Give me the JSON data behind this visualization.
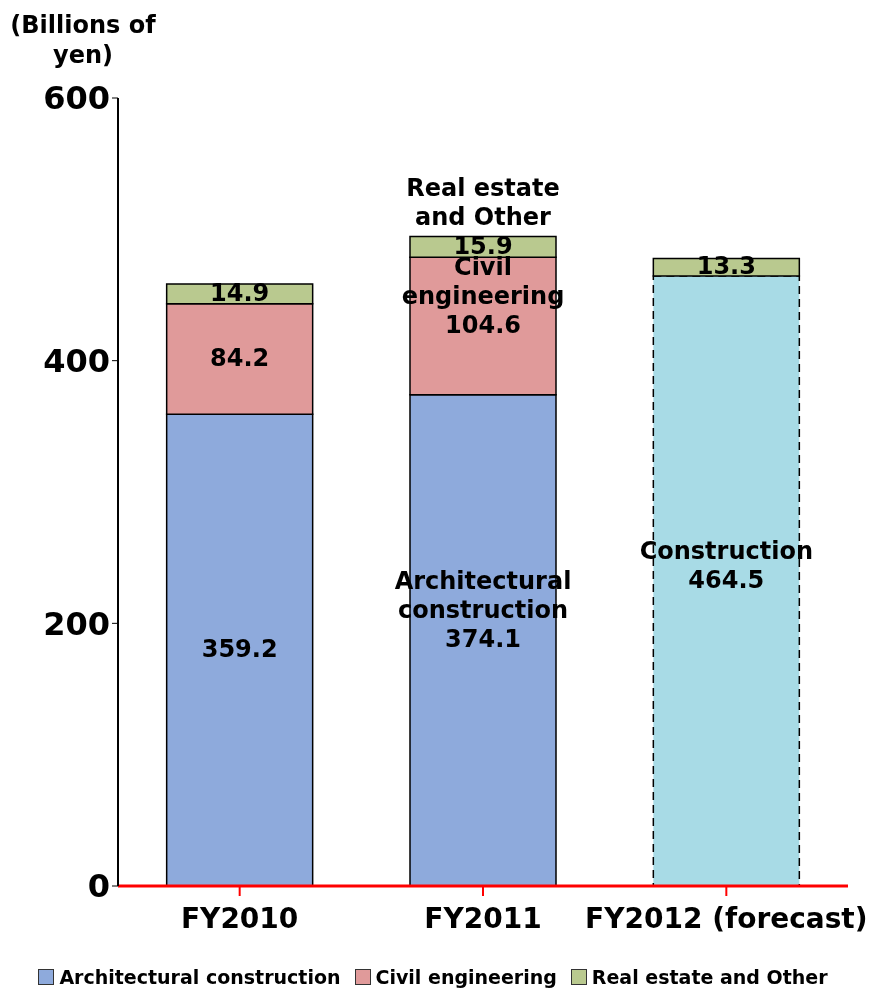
{
  "chart_data": {
    "type": "bar",
    "stacked": true,
    "ylabel": "(Billions of yen)",
    "categories": [
      "FY2010",
      "FY2011",
      "FY2012 (forecast)"
    ],
    "ylim": [
      0,
      600
    ],
    "yticks": [
      0,
      200,
      400,
      600
    ],
    "grid": false,
    "legend": "bottom",
    "series": [
      {
        "name": "Architectural construction",
        "color": "#8eaadc",
        "values": [
          359.2,
          374.1,
          null
        ],
        "value_labels": [
          "359.2",
          "Architectural\nconstruction\n374.1",
          null
        ]
      },
      {
        "name": "Civil engineering",
        "color": "#e09a9a",
        "values": [
          84.2,
          104.6,
          null
        ],
        "value_labels": [
          "84.2",
          "Civil\nengineering\n104.6",
          null
        ]
      },
      {
        "color": "#a8dbe6",
        "values": [
          null,
          null,
          464.5
        ],
        "value_labels": [
          null,
          null,
          "Construction\n464.5"
        ],
        "line_style": "dashed"
      },
      {
        "name": "Real estate and Other",
        "color": "#b9c98f",
        "values": [
          14.9,
          15.9,
          13.3
        ],
        "value_labels": [
          "14.9",
          "Real estate\nand Other\n15.9",
          "13.3"
        ]
      }
    ]
  }
}
